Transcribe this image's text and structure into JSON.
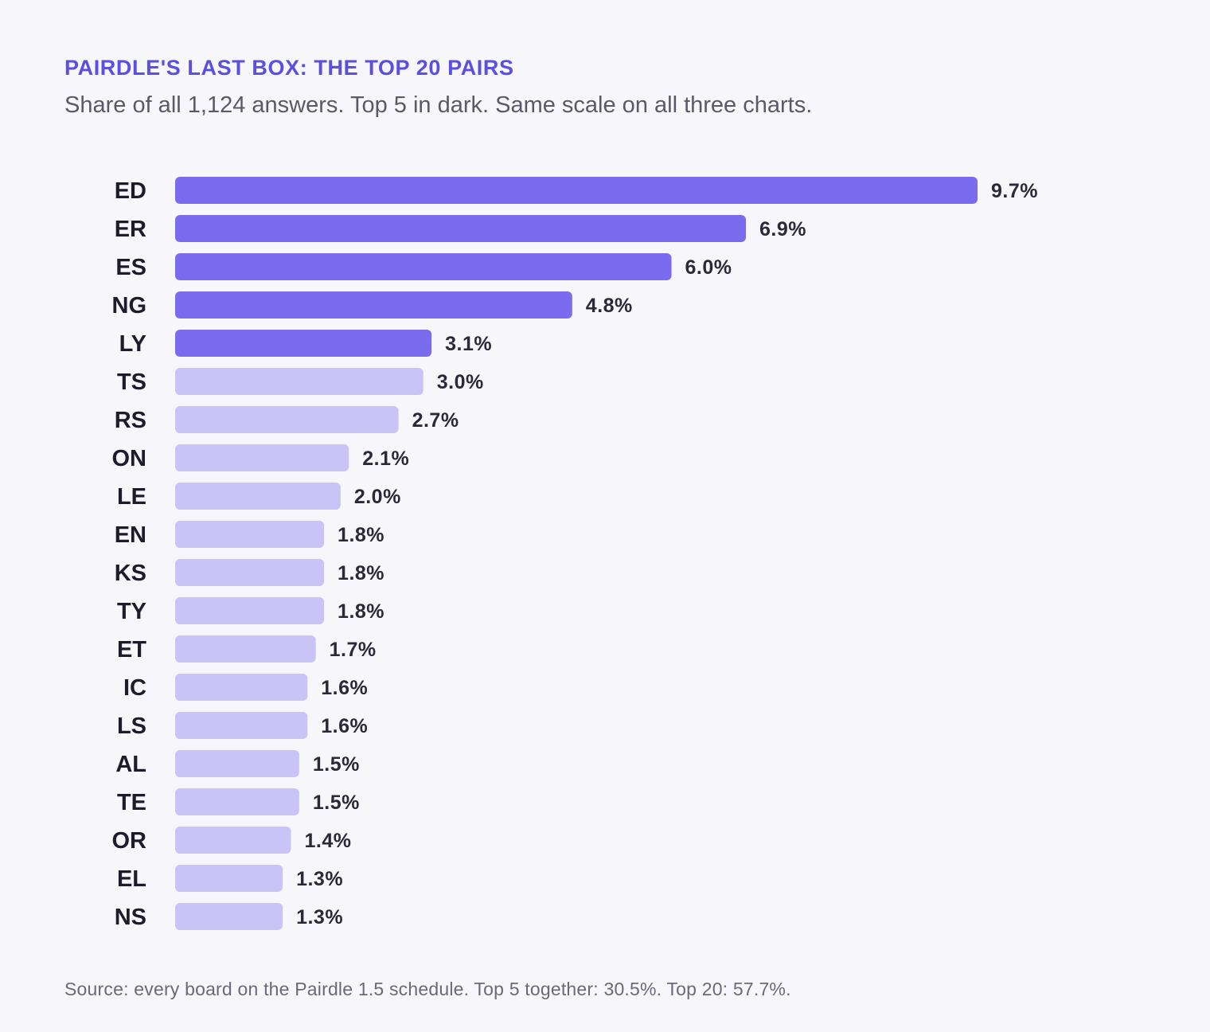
{
  "title": "PAIRDLE'S LAST BOX: THE TOP 20 PAIRS",
  "subtitle": "Share of all 1,124 answers. Top 5 in dark. Same scale on all three charts.",
  "footer": "Source: every board on the Pairdle 1.5 schedule. Top 5 together: 30.5%. Top 20: 57.7%.",
  "colors": {
    "highlight": "#7b6cef",
    "muted": "#c9c3f6"
  },
  "chart_data": {
    "type": "bar",
    "orientation": "horizontal",
    "categories": [
      "ED",
      "ER",
      "ES",
      "NG",
      "LY",
      "TS",
      "RS",
      "ON",
      "LE",
      "EN",
      "KS",
      "TY",
      "ET",
      "IC",
      "LS",
      "AL",
      "TE",
      "OR",
      "EL",
      "NS"
    ],
    "values": [
      9.7,
      6.9,
      6.0,
      4.8,
      3.1,
      3.0,
      2.7,
      2.1,
      2.0,
      1.8,
      1.8,
      1.8,
      1.7,
      1.6,
      1.6,
      1.5,
      1.5,
      1.4,
      1.3,
      1.3
    ],
    "value_labels": [
      "9.7%",
      "6.9%",
      "6.0%",
      "4.8%",
      "3.1%",
      "3.0%",
      "2.7%",
      "2.1%",
      "2.0%",
      "1.8%",
      "1.8%",
      "1.8%",
      "1.7%",
      "1.6%",
      "1.6%",
      "1.5%",
      "1.5%",
      "1.4%",
      "1.3%",
      "1.3%"
    ],
    "highlight_top_n": 5,
    "unit": "%",
    "grid": false,
    "legend": "none"
  }
}
